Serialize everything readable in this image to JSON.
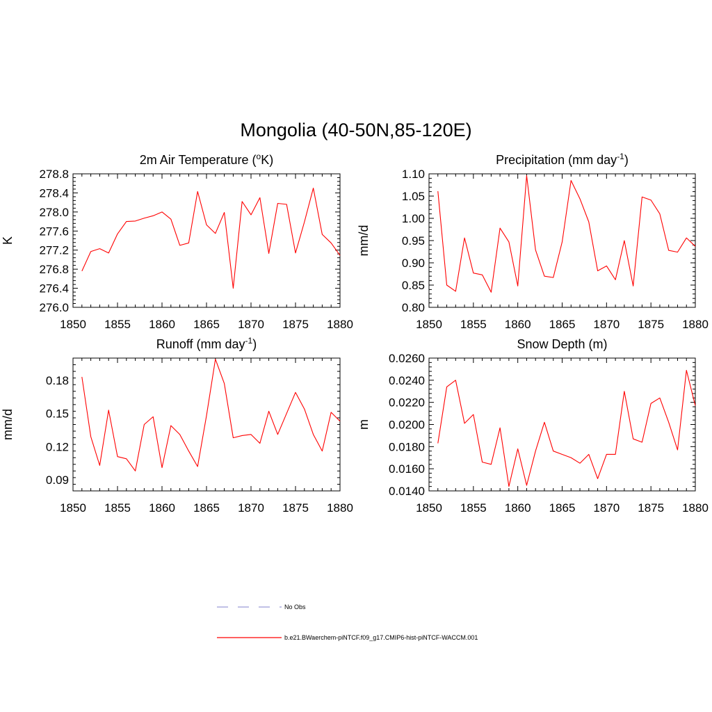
{
  "figure_title": "Mongolia (40-50N,85-120E)",
  "legend": {
    "items": [
      {
        "label": "No Obs",
        "style": "dashed",
        "color": "#9a9ad6"
      },
      {
        "label": "b.e21.BWaerchem-piNTCF.f09_g17.CMIP6-hist-piNTCF-WACCM.001",
        "style": "solid",
        "color": "#ff0000"
      }
    ]
  },
  "chart_data": [
    {
      "type": "line",
      "title": "2m Air Temperature (°K)",
      "title_parts": [
        "2m Air Temperature (",
        "o",
        "K)"
      ],
      "ylabel": "K",
      "xlim": [
        1850,
        1880
      ],
      "ylim": [
        276.0,
        278.8
      ],
      "xticks": [
        "1850",
        "1855",
        "1860",
        "1865",
        "1870",
        "1875",
        "1880"
      ],
      "yticks": [
        "276.0",
        "276.4",
        "276.8",
        "277.2",
        "277.6",
        "278.0",
        "278.4",
        "278.8"
      ],
      "series": [
        {
          "color": "#ff0000",
          "x": [
            1851,
            1852,
            1853,
            1854,
            1855,
            1856,
            1857,
            1858,
            1859,
            1860,
            1861,
            1862,
            1863,
            1864,
            1865,
            1866,
            1867,
            1868,
            1869,
            1870,
            1871,
            1872,
            1873,
            1874,
            1875,
            1876,
            1877,
            1878,
            1879,
            1880
          ],
          "values": [
            276.76,
            277.17,
            277.23,
            277.14,
            277.54,
            277.8,
            277.81,
            277.87,
            277.92,
            278.0,
            277.85,
            277.3,
            277.35,
            278.43,
            277.73,
            277.55,
            277.99,
            276.4,
            278.22,
            277.94,
            278.3,
            277.13,
            278.18,
            278.16,
            277.14,
            277.79,
            278.5,
            277.53,
            277.35,
            277.09
          ]
        }
      ]
    },
    {
      "type": "line",
      "title": "Precipitation (mm day-1)",
      "title_parts": [
        "Precipitation (mm day",
        "-1",
        ")"
      ],
      "ylabel": "mm/d",
      "xlim": [
        1850,
        1880
      ],
      "ylim": [
        0.8,
        1.1
      ],
      "xticks": [
        "1850",
        "1855",
        "1860",
        "1865",
        "1870",
        "1875",
        "1880"
      ],
      "yticks": [
        "0.80",
        "0.85",
        "0.90",
        "0.95",
        "1.00",
        "1.05",
        "1.10"
      ],
      "series": [
        {
          "color": "#ff0000",
          "x": [
            1851,
            1852,
            1853,
            1854,
            1855,
            1856,
            1857,
            1858,
            1859,
            1860,
            1861,
            1862,
            1863,
            1864,
            1865,
            1866,
            1867,
            1868,
            1869,
            1870,
            1871,
            1872,
            1873,
            1874,
            1875,
            1876,
            1877,
            1878,
            1879,
            1880
          ],
          "values": [
            1.061,
            0.85,
            0.836,
            0.956,
            0.877,
            0.873,
            0.834,
            0.978,
            0.947,
            0.848,
            1.096,
            0.929,
            0.87,
            0.867,
            0.947,
            1.085,
            1.044,
            0.992,
            0.882,
            0.893,
            0.862,
            0.95,
            0.848,
            1.048,
            1.041,
            1.01,
            0.928,
            0.924,
            0.956,
            0.937
          ]
        }
      ]
    },
    {
      "type": "line",
      "title": "Runoff (mm day-1)",
      "title_parts": [
        "Runoff (mm day",
        "-1",
        ")"
      ],
      "ylabel": "mm/d",
      "xlim": [
        1850,
        1880
      ],
      "ylim": [
        0.08,
        0.2
      ],
      "xticks": [
        "1850",
        "1855",
        "1860",
        "1865",
        "1870",
        "1875",
        "1880"
      ],
      "yticks": [
        "0.09",
        "0.12",
        "0.15",
        "0.18"
      ],
      "ytick_values": [
        0.09,
        0.12,
        0.15,
        0.18
      ],
      "series": [
        {
          "color": "#ff0000",
          "x": [
            1851,
            1852,
            1853,
            1854,
            1855,
            1856,
            1857,
            1858,
            1859,
            1860,
            1861,
            1862,
            1863,
            1864,
            1865,
            1866,
            1867,
            1868,
            1869,
            1870,
            1871,
            1872,
            1873,
            1874,
            1875,
            1876,
            1877,
            1878,
            1879,
            1880
          ],
          "values": [
            0.183,
            0.129,
            0.103,
            0.153,
            0.111,
            0.109,
            0.098,
            0.14,
            0.147,
            0.101,
            0.139,
            0.131,
            0.116,
            0.102,
            0.148,
            0.199,
            0.177,
            0.128,
            0.13,
            0.131,
            0.123,
            0.152,
            0.131,
            0.15,
            0.169,
            0.154,
            0.131,
            0.116,
            0.151,
            0.143
          ]
        }
      ]
    },
    {
      "type": "line",
      "title": "Snow Depth (m)",
      "ylabel": "m",
      "xlim": [
        1850,
        1880
      ],
      "ylim": [
        0.014,
        0.026
      ],
      "xticks": [
        "1850",
        "1855",
        "1860",
        "1865",
        "1870",
        "1875",
        "1880"
      ],
      "yticks": [
        "0.0140",
        "0.0160",
        "0.0180",
        "0.0200",
        "0.0220",
        "0.0240",
        "0.0260"
      ],
      "series": [
        {
          "color": "#ff0000",
          "x": [
            1851,
            1852,
            1853,
            1854,
            1855,
            1856,
            1857,
            1858,
            1859,
            1860,
            1861,
            1862,
            1863,
            1864,
            1865,
            1866,
            1867,
            1868,
            1869,
            1870,
            1871,
            1872,
            1873,
            1874,
            1875,
            1876,
            1877,
            1878,
            1879,
            1880
          ],
          "values": [
            0.0183,
            0.0234,
            0.024,
            0.0201,
            0.0209,
            0.0166,
            0.0164,
            0.0197,
            0.0144,
            0.0178,
            0.0145,
            0.0176,
            0.0202,
            0.0176,
            0.0173,
            0.017,
            0.0165,
            0.0173,
            0.0151,
            0.0173,
            0.0173,
            0.023,
            0.0187,
            0.0184,
            0.0219,
            0.0224,
            0.0202,
            0.0177,
            0.0249,
            0.0217
          ]
        }
      ]
    }
  ]
}
